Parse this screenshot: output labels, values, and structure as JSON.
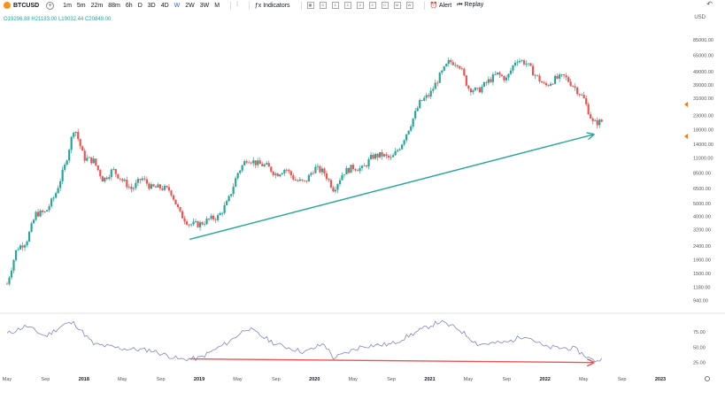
{
  "toolbar": {
    "symbol": "BTCUSD",
    "intervals": [
      "1m",
      "5m",
      "22m",
      "88m",
      "6h",
      "D",
      "3D",
      "4D",
      "W",
      "2W",
      "3W",
      "M"
    ],
    "active_interval": "W",
    "indicators_label": "Indicators",
    "small_buttons": [
      "0",
      "1",
      "2",
      "3",
      "4",
      "C",
      "M",
      "W"
    ],
    "alert_label": "Alert",
    "replay_label": "Replay"
  },
  "ohlc": "O19296.88 H21183.00 L19032.44 C20849.00",
  "currency": "USD",
  "colors": {
    "up": "#26a69a",
    "down": "#ef5350",
    "indicator": "#7e86c2",
    "grid": "#f0f3fa",
    "price_marker_1": "#f57f17",
    "price_marker_2": "#f57f17"
  },
  "chart_data": [
    {
      "type": "candlestick",
      "title": "",
      "yscale": "log",
      "ylim": [
        800,
        110000
      ],
      "ytick_labels": [
        "85000.00",
        "65000.00",
        "49000.00",
        "39000.00",
        "31000.00",
        "23000.00",
        "18000.00",
        "14000.00",
        "11000.00",
        "8500.00",
        "6500.00",
        "5000.00",
        "4000.00",
        "3200.00",
        "2400.00",
        "1900.00",
        "1500.00",
        "1180.00",
        "940.00"
      ],
      "xtick_labels": [
        "May",
        "Sep",
        "2018",
        "May",
        "Sep",
        "2019",
        "May",
        "Sep",
        "2020",
        "May",
        "Sep",
        "2021",
        "May",
        "Sep",
        "2022",
        "May",
        "Sep",
        "2023"
      ],
      "price_path": [
        [
          "2017-05",
          1250
        ],
        [
          "2017-06",
          2300
        ],
        [
          "2017-07",
          2600
        ],
        [
          "2017-08",
          4200
        ],
        [
          "2017-09",
          4300
        ],
        [
          "2017-10",
          5800
        ],
        [
          "2017-11",
          9500
        ],
        [
          "2017-12",
          19000
        ],
        [
          "2018-01",
          11000
        ],
        [
          "2018-02",
          10500
        ],
        [
          "2018-03",
          7500
        ],
        [
          "2018-04",
          9000
        ],
        [
          "2018-05",
          7500
        ],
        [
          "2018-06",
          6400
        ],
        [
          "2018-07",
          7800
        ],
        [
          "2018-08",
          6600
        ],
        [
          "2018-09",
          6600
        ],
        [
          "2018-10",
          6300
        ],
        [
          "2018-11",
          4200
        ],
        [
          "2018-12",
          3500
        ],
        [
          "2019-01",
          3500
        ],
        [
          "2019-02",
          3800
        ],
        [
          "2019-03",
          4000
        ],
        [
          "2019-04",
          5200
        ],
        [
          "2019-05",
          8500
        ],
        [
          "2019-06",
          11000
        ],
        [
          "2019-07",
          10000
        ],
        [
          "2019-08",
          9600
        ],
        [
          "2019-09",
          8300
        ],
        [
          "2019-10",
          9200
        ],
        [
          "2019-11",
          7500
        ],
        [
          "2019-12",
          7200
        ],
        [
          "2020-01",
          9300
        ],
        [
          "2020-02",
          8600
        ],
        [
          "2020-03",
          6400
        ],
        [
          "2020-04",
          8600
        ],
        [
          "2020-05",
          9400
        ],
        [
          "2020-06",
          9100
        ],
        [
          "2020-07",
          11300
        ],
        [
          "2020-08",
          11600
        ],
        [
          "2020-09",
          10800
        ],
        [
          "2020-10",
          13800
        ],
        [
          "2020-11",
          19700
        ],
        [
          "2020-12",
          29000
        ],
        [
          "2021-01",
          33000
        ],
        [
          "2021-02",
          45000
        ],
        [
          "2021-03",
          58000
        ],
        [
          "2021-04",
          57000
        ],
        [
          "2021-05",
          37000
        ],
        [
          "2021-06",
          35000
        ],
        [
          "2021-07",
          41000
        ],
        [
          "2021-08",
          47000
        ],
        [
          "2021-09",
          43000
        ],
        [
          "2021-10",
          61000
        ],
        [
          "2021-11",
          57000
        ],
        [
          "2021-12",
          46000
        ],
        [
          "2022-01",
          38000
        ],
        [
          "2022-02",
          43000
        ],
        [
          "2022-03",
          45000
        ],
        [
          "2022-04",
          38000
        ],
        [
          "2022-05",
          31000
        ],
        [
          "2022-06",
          20000
        ],
        [
          "2022-07",
          20849
        ]
      ],
      "annotations": [
        {
          "type": "trendline",
          "color": "#26a69a",
          "from": [
            "2018-12",
            2700
          ],
          "to": [
            "2022-06",
            16500
          ],
          "arrow": true
        }
      ]
    },
    {
      "type": "line",
      "title": "",
      "series_name": "",
      "ylim": [
        10,
        100
      ],
      "ytick_labels": [
        "75.00",
        "50.00",
        "25.00"
      ],
      "values_path": [
        [
          "2017-05",
          72
        ],
        [
          "2017-07",
          85
        ],
        [
          "2017-09",
          68
        ],
        [
          "2017-11",
          88
        ],
        [
          "2017-12",
          90
        ],
        [
          "2018-02",
          55
        ],
        [
          "2018-05",
          48
        ],
        [
          "2018-08",
          45
        ],
        [
          "2018-11",
          30
        ],
        [
          "2019-01",
          32
        ],
        [
          "2019-04",
          58
        ],
        [
          "2019-06",
          82
        ],
        [
          "2019-09",
          55
        ],
        [
          "2019-12",
          42
        ],
        [
          "2020-02",
          56
        ],
        [
          "2020-03",
          32
        ],
        [
          "2020-06",
          52
        ],
        [
          "2020-09",
          55
        ],
        [
          "2020-12",
          78
        ],
        [
          "2021-02",
          92
        ],
        [
          "2021-04",
          80
        ],
        [
          "2021-06",
          55
        ],
        [
          "2021-09",
          58
        ],
        [
          "2021-11",
          70
        ],
        [
          "2022-01",
          50
        ],
        [
          "2022-04",
          48
        ],
        [
          "2022-06",
          28
        ],
        [
          "2022-07",
          30
        ]
      ],
      "annotations": [
        {
          "type": "trendline",
          "color": "#ef5350",
          "from": [
            "2018-12",
            31
          ],
          "to": [
            "2022-06",
            25
          ],
          "arrow": true
        }
      ]
    }
  ]
}
